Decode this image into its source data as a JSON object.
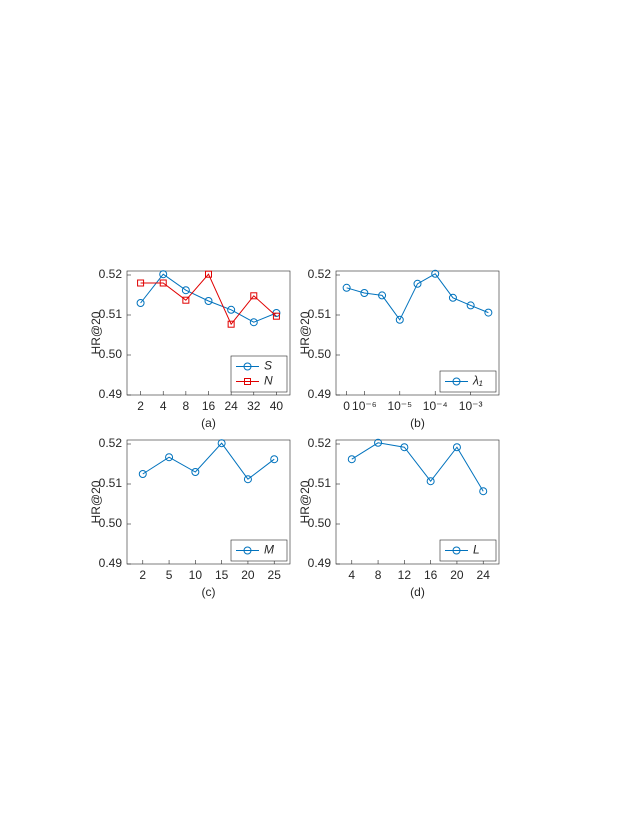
{
  "chart_data": [
    {
      "type": "line",
      "xlabel": "(a)",
      "ylabel": "HR@20",
      "categories": [
        "2",
        "4",
        "8",
        "16",
        "24",
        "32",
        "40"
      ],
      "series": [
        {
          "name": "S",
          "color": "#0072bd",
          "marker": "circle",
          "values": [
            0.513,
            0.5202,
            0.5162,
            0.5135,
            0.5113,
            0.5082,
            0.5105
          ]
        },
        {
          "name": "N",
          "color": "#e00000",
          "marker": "square",
          "values": [
            0.518,
            0.518,
            0.5137,
            0.5202,
            0.5077,
            0.5148,
            0.5097
          ]
        }
      ],
      "ylim": [
        0.49,
        0.521
      ],
      "yticks": [
        0.49,
        {
          "value": 0.5,
          "label": "0.50"
        },
        0.51,
        0.52
      ],
      "legend": "southeast"
    },
    {
      "type": "line",
      "xlabel": "(b)",
      "ylabel": "HR@20",
      "categories": [
        "0",
        "10⁻⁶",
        null,
        "10⁻⁵",
        null,
        "10⁻⁴",
        null,
        "10⁻³",
        null
      ],
      "series": [
        {
          "name": "λ₁",
          "color": "#0072bd",
          "marker": "circle",
          "values": [
            0.5168,
            0.5155,
            0.5149,
            0.5088,
            0.5178,
            0.5203,
            0.5143,
            0.5124,
            0.5106
          ]
        }
      ],
      "ylim": [
        0.49,
        0.521
      ],
      "yticks": [
        0.49,
        {
          "value": 0.5,
          "label": "0.50"
        },
        0.51,
        0.52
      ],
      "legend": "southeast"
    },
    {
      "type": "line",
      "xlabel": "(c)",
      "ylabel": "HR@20",
      "categories": [
        "2",
        "5",
        "10",
        "15",
        "20",
        "25"
      ],
      "series": [
        {
          "name": "M",
          "color": "#0072bd",
          "marker": "circle",
          "values": [
            0.5125,
            0.5167,
            0.513,
            0.5202,
            0.5112,
            0.5162
          ]
        }
      ],
      "ylim": [
        0.49,
        0.521
      ],
      "yticks": [
        0.49,
        {
          "value": 0.5,
          "label": "0.50"
        },
        0.51,
        0.52
      ],
      "legend": "southeast"
    },
    {
      "type": "line",
      "xlabel": "(d)",
      "ylabel": "HR@20",
      "categories": [
        "4",
        "8",
        "12",
        "16",
        "20",
        "24"
      ],
      "series": [
        {
          "name": "L",
          "color": "#0072bd",
          "marker": "circle",
          "values": [
            0.5162,
            0.5203,
            0.5192,
            0.5107,
            0.5192,
            0.5082
          ]
        }
      ],
      "ylim": [
        0.49,
        0.521
      ],
      "yticks": [
        0.49,
        {
          "value": 0.5,
          "label": "0.50"
        },
        0.51,
        0.52
      ],
      "legend": "southeast"
    }
  ]
}
